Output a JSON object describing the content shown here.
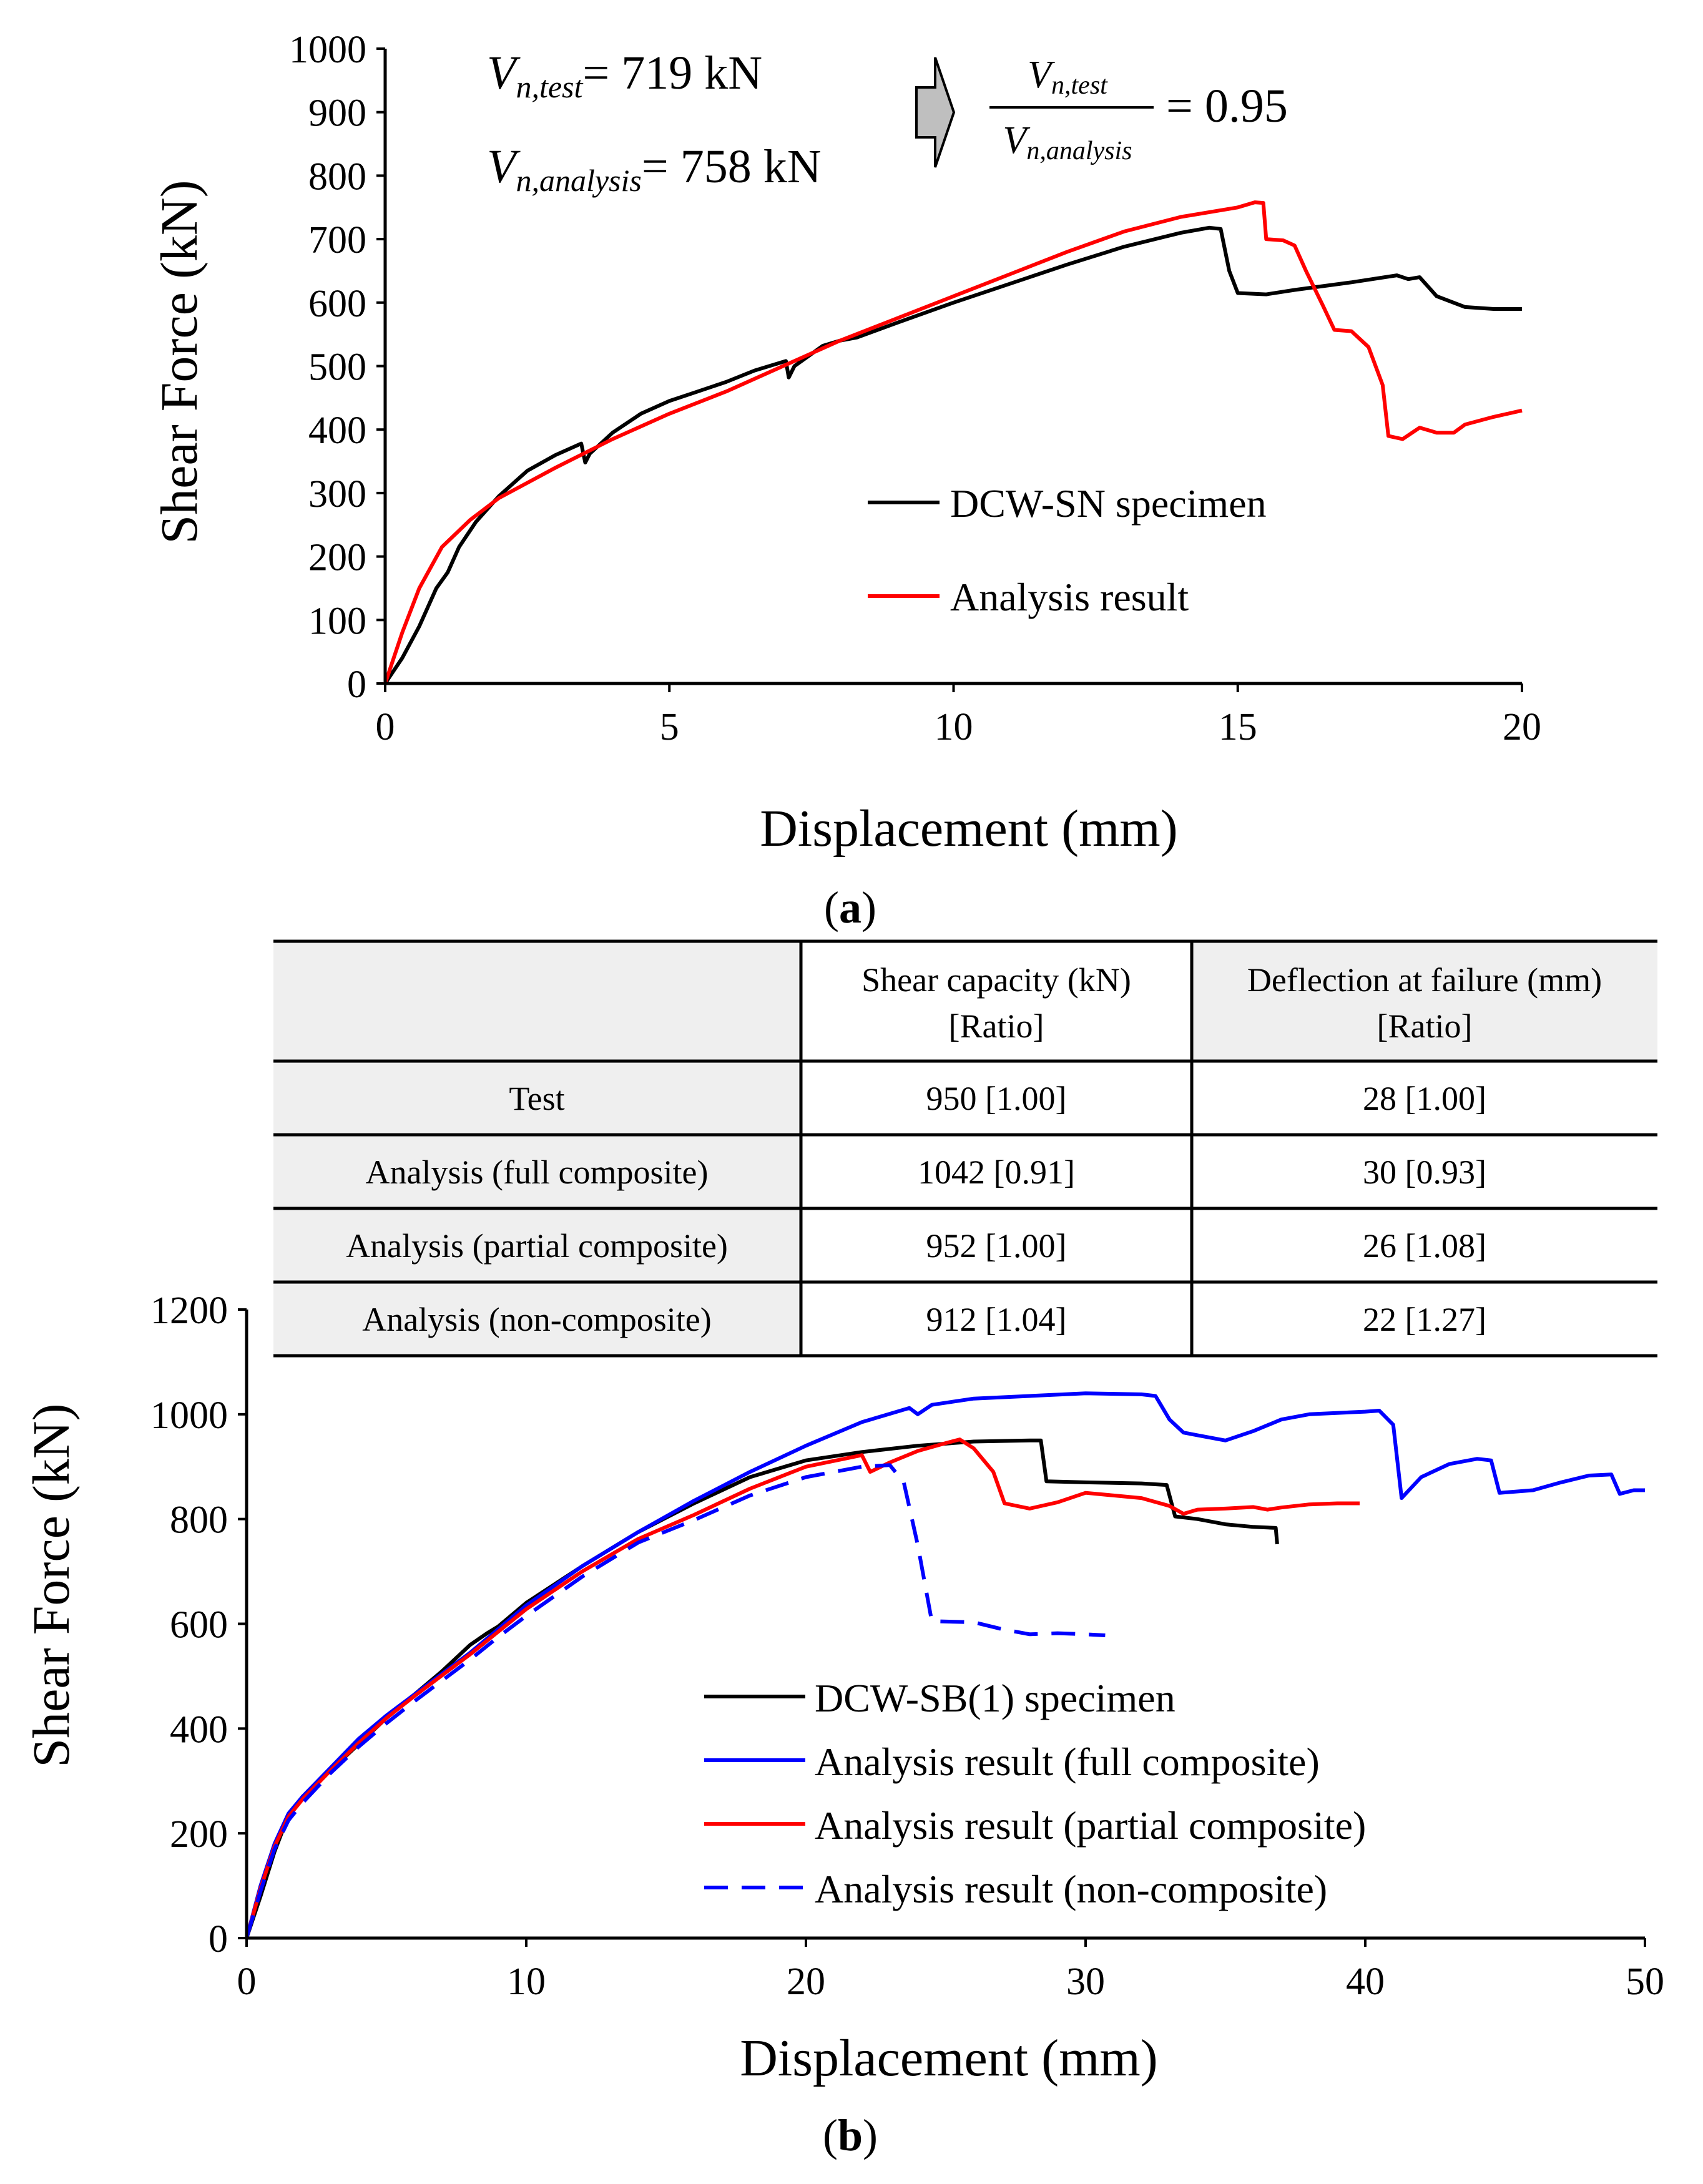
{
  "chart_data": [
    {
      "type": "line",
      "panel_label": "a",
      "xlabel": "Displacement (mm)",
      "ylabel": "Shear Force (kN)",
      "xlim": [
        0,
        20
      ],
      "ylim": [
        0,
        1000
      ],
      "xticks": [
        0,
        5,
        10,
        15,
        20
      ],
      "yticks": [
        0,
        100,
        200,
        300,
        400,
        500,
        600,
        700,
        800,
        900,
        1000
      ],
      "legend": "bottom-right",
      "annotation": {
        "test_symbol": "V",
        "test_subscript": "n,test",
        "test_value": "= 719 kN",
        "analysis_symbol": "V",
        "analysis_subscript": "n,analysis",
        "analysis_value": "= 758 kN",
        "ratio_value": "= 0.95"
      },
      "series": [
        {
          "name": "DCW-SN specimen",
          "color": "#000000",
          "dash": "solid",
          "points": [
            [
              0,
              0
            ],
            [
              0.3,
              40
            ],
            [
              0.6,
              90
            ],
            [
              0.9,
              150
            ],
            [
              1.1,
              175
            ],
            [
              1.3,
              215
            ],
            [
              1.6,
              255
            ],
            [
              2.0,
              295
            ],
            [
              2.5,
              335
            ],
            [
              3.0,
              360
            ],
            [
              3.45,
              378
            ],
            [
              3.52,
              348
            ],
            [
              3.6,
              362
            ],
            [
              4.0,
              395
            ],
            [
              4.5,
              425
            ],
            [
              5.0,
              445
            ],
            [
              5.5,
              460
            ],
            [
              6.0,
              475
            ],
            [
              6.5,
              493
            ],
            [
              7.05,
              508
            ],
            [
              7.1,
              482
            ],
            [
              7.2,
              500
            ],
            [
              7.7,
              532
            ],
            [
              8.0,
              540
            ],
            [
              8.3,
              545
            ],
            [
              9.0,
              568
            ],
            [
              10.0,
              600
            ],
            [
              11.0,
              630
            ],
            [
              12.0,
              660
            ],
            [
              13.0,
              688
            ],
            [
              14.0,
              710
            ],
            [
              14.5,
              718
            ],
            [
              14.7,
              716
            ],
            [
              14.85,
              650
            ],
            [
              15.0,
              615
            ],
            [
              15.5,
              613
            ],
            [
              16.0,
              620
            ],
            [
              17.0,
              632
            ],
            [
              17.8,
              643
            ],
            [
              18.0,
              637
            ],
            [
              18.2,
              640
            ],
            [
              18.5,
              610
            ],
            [
              19.0,
              593
            ],
            [
              19.5,
              590
            ],
            [
              20.0,
              590
            ]
          ]
        },
        {
          "name": "Analysis result",
          "color": "#ff0000",
          "dash": "solid",
          "points": [
            [
              0,
              0
            ],
            [
              0.3,
              80
            ],
            [
              0.6,
              150
            ],
            [
              1.0,
              215
            ],
            [
              1.5,
              258
            ],
            [
              2.0,
              292
            ],
            [
              3.0,
              340
            ],
            [
              4.0,
              385
            ],
            [
              5.0,
              425
            ],
            [
              6.0,
              460
            ],
            [
              7.0,
              500
            ],
            [
              8.0,
              540
            ],
            [
              9.0,
              575
            ],
            [
              10.0,
              610
            ],
            [
              11.0,
              645
            ],
            [
              12.0,
              680
            ],
            [
              13.0,
              712
            ],
            [
              14.0,
              735
            ],
            [
              15.0,
              750
            ],
            [
              15.3,
              758
            ],
            [
              15.45,
              757
            ],
            [
              15.5,
              700
            ],
            [
              15.8,
              698
            ],
            [
              16.0,
              690
            ],
            [
              16.2,
              650
            ],
            [
              16.5,
              595
            ],
            [
              16.7,
              557
            ],
            [
              17.0,
              555
            ],
            [
              17.3,
              530
            ],
            [
              17.55,
              470
            ],
            [
              17.65,
              390
            ],
            [
              17.9,
              385
            ],
            [
              18.2,
              403
            ],
            [
              18.5,
              395
            ],
            [
              18.8,
              395
            ],
            [
              19.0,
              408
            ],
            [
              19.5,
              420
            ],
            [
              20.0,
              430
            ]
          ]
        }
      ]
    },
    {
      "type": "line",
      "panel_label": "b",
      "xlabel": "Displacement (mm)",
      "ylabel": "Shear Force (kN)",
      "xlim": [
        0,
        50
      ],
      "ylim": [
        0,
        1200
      ],
      "xticks": [
        0,
        10,
        20,
        30,
        40,
        50
      ],
      "yticks": [
        0,
        200,
        400,
        600,
        800,
        1000,
        1200
      ],
      "legend": "bottom-center",
      "series": [
        {
          "name": "DCW-SB(1) specimen",
          "color": "#000000",
          "dash": "solid",
          "points": [
            [
              0,
              0
            ],
            [
              0.5,
              80
            ],
            [
              1.0,
              165
            ],
            [
              1.5,
              235
            ],
            [
              2.0,
              270
            ],
            [
              3.0,
              320
            ],
            [
              4.0,
              370
            ],
            [
              5.0,
              420
            ],
            [
              6.0,
              465
            ],
            [
              7.0,
              510
            ],
            [
              8.0,
              560
            ],
            [
              8.6,
              582
            ],
            [
              9.0,
              595
            ],
            [
              10.0,
              640
            ],
            [
              12.0,
              710
            ],
            [
              14.0,
              775
            ],
            [
              16.0,
              830
            ],
            [
              18.0,
              880
            ],
            [
              20.0,
              912
            ],
            [
              22.0,
              928
            ],
            [
              24.0,
              940
            ],
            [
              26.0,
              948
            ],
            [
              28.0,
              950
            ],
            [
              28.4,
              950
            ],
            [
              28.6,
              872
            ],
            [
              30.0,
              870
            ],
            [
              32.0,
              868
            ],
            [
              32.9,
              865
            ],
            [
              33.2,
              805
            ],
            [
              34.0,
              800
            ],
            [
              35.0,
              790
            ],
            [
              36.0,
              785
            ],
            [
              36.8,
              783
            ],
            [
              36.85,
              752
            ]
          ]
        },
        {
          "name": "Analysis result (full composite)",
          "color": "#0000ff",
          "dash": "solid",
          "points": [
            [
              0,
              0
            ],
            [
              0.5,
              100
            ],
            [
              1.0,
              180
            ],
            [
              1.5,
              238
            ],
            [
              2.0,
              270
            ],
            [
              3.0,
              325
            ],
            [
              4.0,
              380
            ],
            [
              5.0,
              425
            ],
            [
              6.0,
              465
            ],
            [
              7.0,
              505
            ],
            [
              8.0,
              545
            ],
            [
              9.0,
              590
            ],
            [
              10.0,
              635
            ],
            [
              12.0,
              710
            ],
            [
              14.0,
              775
            ],
            [
              16.0,
              835
            ],
            [
              18.0,
              890
            ],
            [
              20.0,
              940
            ],
            [
              22.0,
              985
            ],
            [
              23.7,
              1012
            ],
            [
              24.0,
              1000
            ],
            [
              24.5,
              1018
            ],
            [
              26.0,
              1030
            ],
            [
              28.0,
              1035
            ],
            [
              30.0,
              1040
            ],
            [
              32.0,
              1038
            ],
            [
              32.5,
              1035
            ],
            [
              33.0,
              990
            ],
            [
              33.5,
              965
            ],
            [
              34.0,
              960
            ],
            [
              35.0,
              950
            ],
            [
              36.0,
              968
            ],
            [
              37.0,
              990
            ],
            [
              38.0,
              1000
            ],
            [
              40.0,
              1005
            ],
            [
              40.5,
              1007
            ],
            [
              41.0,
              980
            ],
            [
              41.3,
              840
            ],
            [
              42.0,
              880
            ],
            [
              43.0,
              905
            ],
            [
              44.0,
              915
            ],
            [
              44.5,
              912
            ],
            [
              44.8,
              850
            ],
            [
              46.0,
              855
            ],
            [
              47.0,
              870
            ],
            [
              48.0,
              883
            ],
            [
              48.8,
              885
            ],
            [
              49.1,
              848
            ],
            [
              49.6,
              855
            ],
            [
              50.0,
              855
            ]
          ]
        },
        {
          "name": "Analysis result (partial composite)",
          "color": "#ff0000",
          "dash": "solid",
          "points": [
            [
              0,
              0
            ],
            [
              0.5,
              95
            ],
            [
              1.0,
              175
            ],
            [
              1.5,
              232
            ],
            [
              2.0,
              265
            ],
            [
              3.0,
              320
            ],
            [
              4.0,
              372
            ],
            [
              5.0,
              420
            ],
            [
              6.0,
              462
            ],
            [
              7.0,
              502
            ],
            [
              8.0,
              542
            ],
            [
              9.0,
              585
            ],
            [
              10.0,
              628
            ],
            [
              12.0,
              700
            ],
            [
              14.0,
              762
            ],
            [
              16.0,
              808
            ],
            [
              18.0,
              858
            ],
            [
              20.0,
              900
            ],
            [
              22.0,
              922
            ],
            [
              22.3,
              890
            ],
            [
              23.0,
              908
            ],
            [
              24.0,
              930
            ],
            [
              25.0,
              945
            ],
            [
              25.5,
              952
            ],
            [
              26.0,
              935
            ],
            [
              26.7,
              890
            ],
            [
              27.1,
              830
            ],
            [
              28.0,
              820
            ],
            [
              29.0,
              832
            ],
            [
              30.0,
              850
            ],
            [
              31.0,
              845
            ],
            [
              32.0,
              840
            ],
            [
              33.0,
              825
            ],
            [
              33.5,
              810
            ],
            [
              34.0,
              818
            ],
            [
              35.0,
              820
            ],
            [
              36.0,
              823
            ],
            [
              36.5,
              818
            ],
            [
              37.0,
              822
            ],
            [
              38.0,
              828
            ],
            [
              39.0,
              830
            ],
            [
              39.8,
              830
            ]
          ]
        },
        {
          "name": "Analysis result (non-composite)",
          "color": "#0000ff",
          "dash": "dashed",
          "points": [
            [
              0,
              0
            ],
            [
              0.5,
              90
            ],
            [
              1.0,
              170
            ],
            [
              1.5,
              225
            ],
            [
              2.0,
              258
            ],
            [
              3.0,
              315
            ],
            [
              4.0,
              365
            ],
            [
              5.0,
              410
            ],
            [
              6.0,
              452
            ],
            [
              7.0,
              492
            ],
            [
              8.0,
              532
            ],
            [
              9.0,
              575
            ],
            [
              10.0,
              615
            ],
            [
              12.0,
              690
            ],
            [
              14.0,
              755
            ],
            [
              16.0,
              798
            ],
            [
              18.0,
              845
            ],
            [
              20.0,
              880
            ],
            [
              22.0,
              900
            ],
            [
              23.0,
              903
            ],
            [
              23.5,
              870
            ],
            [
              24.0,
              750
            ],
            [
              24.5,
              605
            ],
            [
              26.0,
              603
            ],
            [
              27.0,
              590
            ],
            [
              28.0,
              580
            ],
            [
              29.0,
              582
            ],
            [
              30.0,
              580
            ],
            [
              30.7,
              578
            ]
          ]
        }
      ]
    }
  ],
  "table": {
    "col_headers": [
      {
        "line1": "",
        "line2": ""
      },
      {
        "line1": "Shear capacity (kN)",
        "line2": "[Ratio]"
      },
      {
        "line1": "Deflection at failure (mm)",
        "line2": "[Ratio]"
      }
    ],
    "rows": [
      [
        "Test",
        "950 [1.00]",
        "28 [1.00]"
      ],
      [
        "Analysis (full composite)",
        "1042 [0.91]",
        "30 [0.93]"
      ],
      [
        "Analysis (partial composite)",
        "952 [1.00]",
        "26 [1.08]"
      ],
      [
        "Analysis (non-composite)",
        "912 [1.04]",
        "22 [1.27]"
      ]
    ]
  }
}
